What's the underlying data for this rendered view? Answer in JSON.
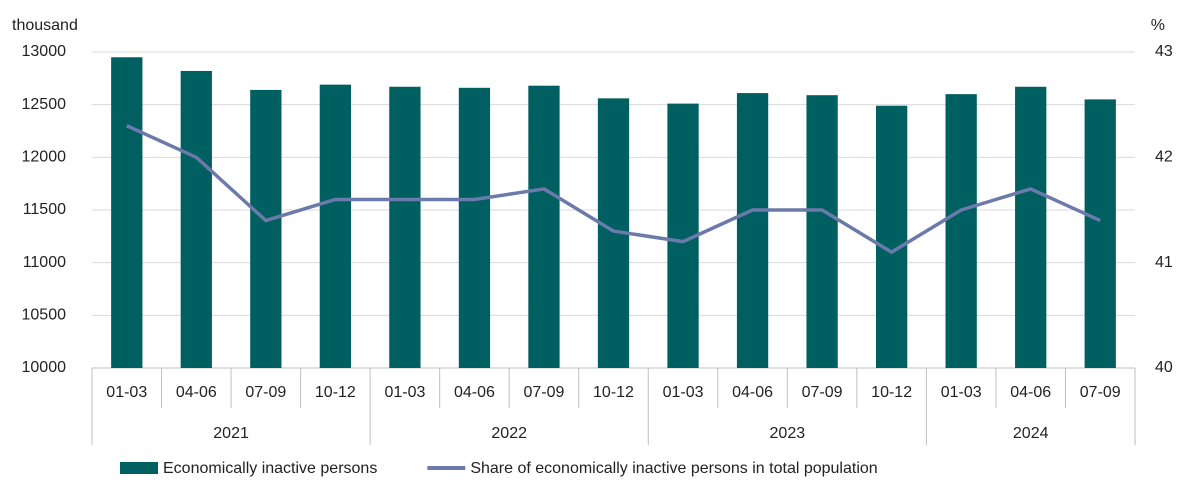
{
  "chart_data": {
    "type": "bar_line",
    "y_label": "thousand",
    "y2_label": "%",
    "categories": [
      "01-03",
      "04-06",
      "07-09",
      "10-12",
      "01-03",
      "04-06",
      "07-09",
      "10-12",
      "01-03",
      "04-06",
      "07-09",
      "10-12",
      "01-03",
      "04-06",
      "07-09"
    ],
    "groups": [
      {
        "name": "2021",
        "count": 4
      },
      {
        "name": "2022",
        "count": 4
      },
      {
        "name": "2023",
        "count": 4
      },
      {
        "name": "2024",
        "count": 3
      }
    ],
    "series": [
      {
        "name": "Economically inactive persons",
        "type": "bar",
        "color": "#005f61",
        "values": [
          12950,
          12820,
          12640,
          12690,
          12670,
          12660,
          12680,
          12560,
          12510,
          12610,
          12590,
          12490,
          12600,
          12670,
          12550
        ]
      },
      {
        "name": "Share of economically inactive persons in total population",
        "type": "line",
        "axis": "y2",
        "color": "#6b7aab",
        "values": [
          42.3,
          42.0,
          41.4,
          41.6,
          41.6,
          41.6,
          41.7,
          41.3,
          41.2,
          41.5,
          41.5,
          41.1,
          41.5,
          41.7,
          41.4
        ]
      }
    ],
    "ylim": [
      10000,
      13000
    ],
    "yticks": [
      10000,
      10500,
      11000,
      11500,
      12000,
      12500,
      13000
    ],
    "y2lim": [
      40,
      43
    ],
    "y2ticks": [
      40,
      41,
      42,
      43
    ],
    "grid": true,
    "legend": "bottom"
  }
}
